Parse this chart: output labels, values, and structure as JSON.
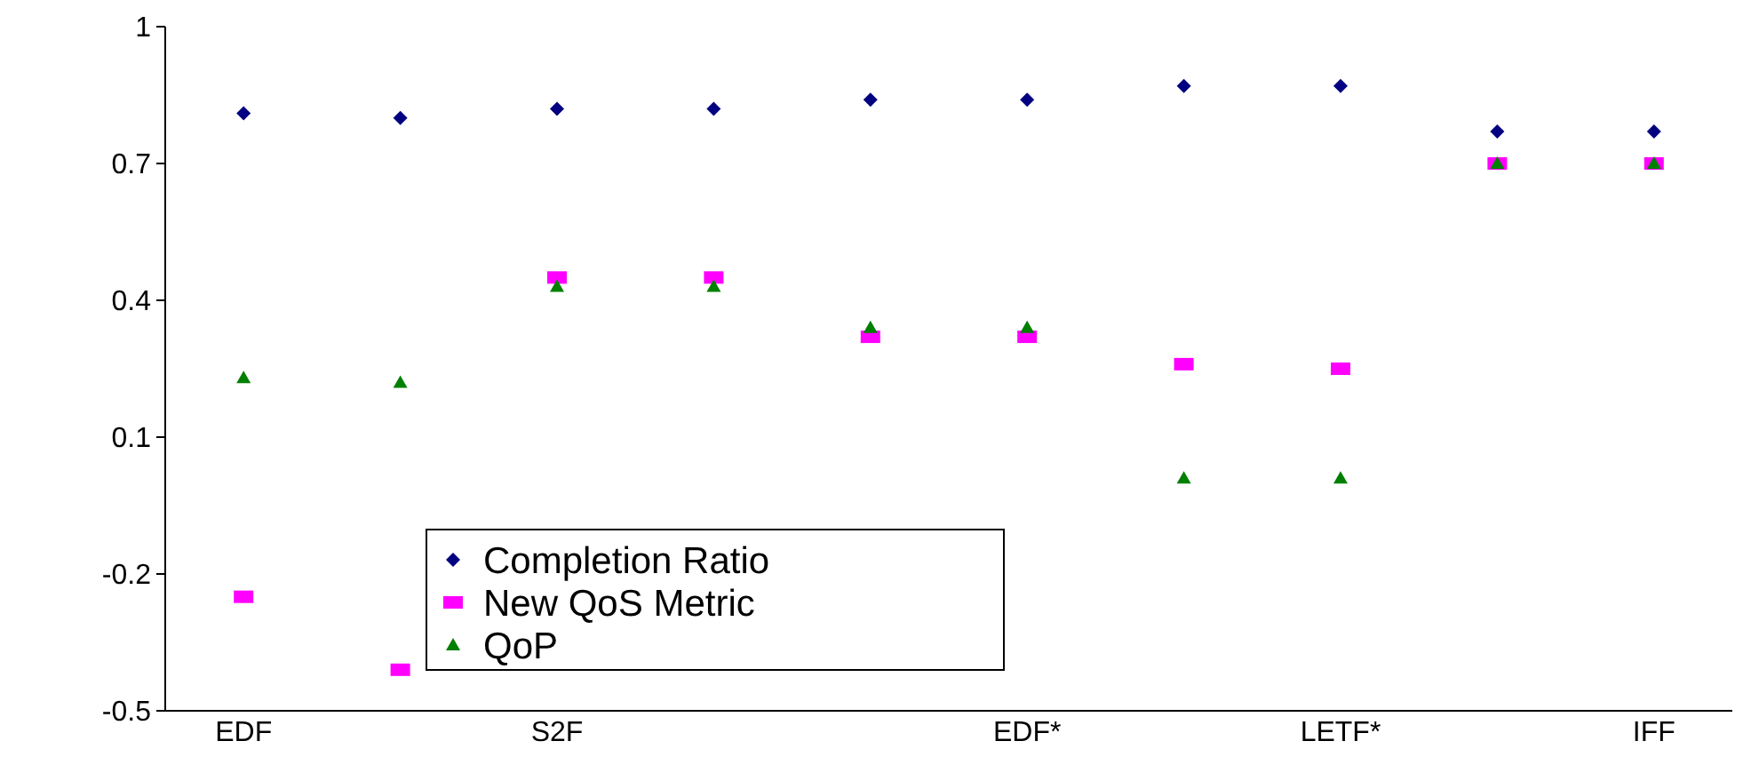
{
  "chart_data": {
    "type": "scatter",
    "categories": [
      "EDF",
      null,
      "S2F",
      null,
      null,
      "EDF*",
      null,
      "LETF*",
      null,
      "IFF"
    ],
    "series": [
      {
        "name": "Completion Ratio",
        "color": "#000080",
        "marker": "diamond",
        "values": [
          0.81,
          0.8,
          0.82,
          0.82,
          0.84,
          0.84,
          0.87,
          0.87,
          0.77,
          0.77
        ]
      },
      {
        "name": "New QoS Metric",
        "color": "#ff00ff",
        "marker": "square",
        "values": [
          -0.25,
          -0.41,
          0.45,
          0.45,
          0.32,
          0.32,
          0.26,
          0.25,
          0.7,
          0.7
        ]
      },
      {
        "name": "QoP",
        "color": "#008000",
        "marker": "triangle",
        "values": [
          0.23,
          0.22,
          0.43,
          0.43,
          0.34,
          0.34,
          0.01,
          0.01,
          0.7,
          0.7
        ]
      }
    ],
    "ylim": [
      -0.5,
      1
    ],
    "yticks": [
      1,
      0.7,
      0.4,
      0.1,
      -0.2,
      -0.5
    ],
    "legend": "bottom left",
    "grid": false
  }
}
